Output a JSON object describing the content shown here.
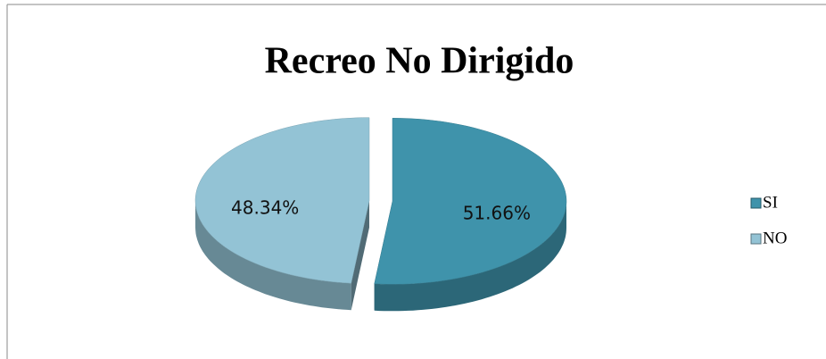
{
  "chart_data": {
    "type": "pie",
    "title": "Recreo No Dirigido",
    "categories": [
      "SI",
      "NO"
    ],
    "values": [
      51.66,
      48.34
    ],
    "value_labels": [
      "51.66%",
      "48.34%"
    ],
    "colors": [
      "#3f93ab",
      "#93c3d5"
    ],
    "legend": "right"
  }
}
